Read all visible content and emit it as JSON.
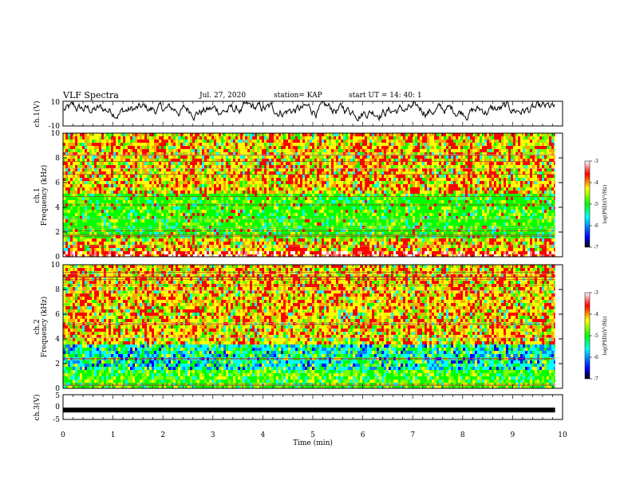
{
  "header": {
    "title": "VLF Spectra",
    "date": "Jul. 27, 2020",
    "station": "station= KAP",
    "start": "start UT =  14: 40: 1"
  },
  "colors": {
    "line": "#000000",
    "colormap": [
      "#000000",
      "#0000ff",
      "#00ffff",
      "#00ff00",
      "#ffff00",
      "#ff0000",
      "#ffffff"
    ]
  },
  "chart_data": [
    {
      "type": "line",
      "name": "ch1-waveform",
      "ylabel": "ch.1(V)",
      "ylim": [
        -10,
        10
      ],
      "yticks": [
        "10",
        "-10"
      ],
      "xlim": [
        0,
        10
      ],
      "x_end": 9.85,
      "approx_level": 3,
      "approx_range": [
        -10,
        10
      ]
    },
    {
      "type": "heatmap",
      "name": "ch1-spectrogram",
      "ylabel": "ch.1 Frequency (kHz)",
      "ylabel_line1": "ch.1",
      "ylabel_line2": "Frequency (kHz)",
      "ylim": [
        0,
        10
      ],
      "yticks": [
        "0",
        "2",
        "4",
        "6",
        "8",
        "10"
      ],
      "xlim": [
        0,
        10
      ],
      "x_end": 9.85,
      "bands": [
        {
          "from": 0,
          "to": 0.5,
          "level": "red/white"
        },
        {
          "from": 0.5,
          "to": 1.5,
          "level": "yellow"
        },
        {
          "from": 1.5,
          "to": 5.0,
          "level": "green"
        },
        {
          "from": 5.0,
          "to": 6.0,
          "level": "yellow/red"
        },
        {
          "from": 6.0,
          "to": 10,
          "level": "yellow/red"
        }
      ],
      "colorbar": {
        "label": "log(PSD)(V²/Hz)",
        "range": [
          -7,
          -3
        ],
        "ticks": [
          "-3",
          "-4",
          "-5",
          "-6",
          "-7"
        ]
      }
    },
    {
      "type": "heatmap",
      "name": "ch2-spectrogram",
      "ylabel": "ch.2 Frequency (kHz)",
      "ylabel_line1": "ch.2",
      "ylabel_line2": "Frequency (kHz)",
      "ylim": [
        0,
        10
      ],
      "yticks": [
        "0",
        "2",
        "4",
        "6",
        "8",
        "10"
      ],
      "xlim": [
        0,
        10
      ],
      "x_end": 9.85,
      "bands": [
        {
          "from": 0,
          "to": 1.5,
          "level": "green/yellow"
        },
        {
          "from": 1.5,
          "to": 3.5,
          "level": "cyan/blue"
        },
        {
          "from": 3.5,
          "to": 5.0,
          "level": "yellow/red"
        },
        {
          "from": 5.0,
          "to": 10,
          "level": "yellow/red"
        }
      ],
      "colorbar": {
        "label": "log(PSD)(V²/Hz)",
        "range": [
          -7,
          -3
        ],
        "ticks": [
          "-3",
          "-4",
          "-5",
          "-6",
          "-7"
        ]
      }
    },
    {
      "type": "line",
      "name": "ch3-waveform",
      "ylabel": "ch.3(V)",
      "ylim": [
        -5,
        5
      ],
      "yticks": [
        "5",
        "0",
        "-5"
      ],
      "xlim": [
        0,
        10
      ],
      "x_end": 9.85,
      "approx_level": -1.2,
      "xlabel": "Time (min)",
      "xticks": [
        "0",
        "1",
        "2",
        "3",
        "4",
        "5",
        "6",
        "7",
        "8",
        "9",
        "10"
      ]
    }
  ]
}
